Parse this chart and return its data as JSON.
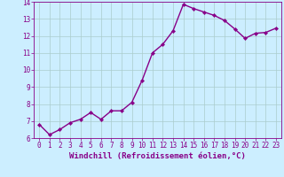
{
  "x": [
    0,
    1,
    2,
    3,
    4,
    5,
    6,
    7,
    8,
    9,
    10,
    11,
    12,
    13,
    14,
    15,
    16,
    17,
    18,
    19,
    20,
    21,
    22,
    23
  ],
  "y": [
    6.8,
    6.2,
    6.5,
    6.9,
    7.1,
    7.5,
    7.1,
    7.6,
    7.6,
    8.1,
    9.4,
    11.0,
    11.5,
    12.3,
    13.85,
    13.6,
    13.4,
    13.2,
    12.9,
    12.4,
    11.85,
    12.15,
    12.2,
    12.45
  ],
  "line_color": "#880088",
  "marker": "D",
  "marker_size": 2.2,
  "xlabel": "Windchill (Refroidissement éolien,°C)",
  "xlabel_fontsize": 6.5,
  "bg_color": "#cceeff",
  "grid_color": "#aacccc",
  "tick_color": "#880088",
  "label_color": "#880088",
  "ylim": [
    6,
    14
  ],
  "xlim": [
    -0.5,
    23.5
  ],
  "yticks": [
    6,
    7,
    8,
    9,
    10,
    11,
    12,
    13,
    14
  ],
  "xticks": [
    0,
    1,
    2,
    3,
    4,
    5,
    6,
    7,
    8,
    9,
    10,
    11,
    12,
    13,
    14,
    15,
    16,
    17,
    18,
    19,
    20,
    21,
    22,
    23
  ],
  "tick_fontsize": 5.5,
  "line_width": 1.0
}
